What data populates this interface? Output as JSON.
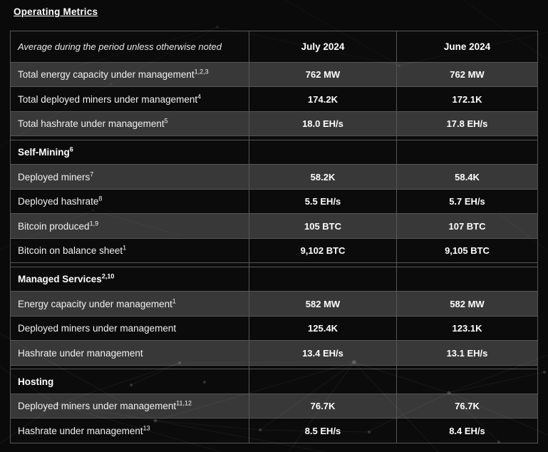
{
  "page": {
    "title": "Operating Metrics"
  },
  "table": {
    "header": {
      "note": "Average during the period unless otherwise noted",
      "columns": [
        "July 2024",
        "June 2024"
      ]
    },
    "rows": [
      {
        "type": "data",
        "label": "Total energy capacity under management",
        "sup": "1,2,3",
        "july": "762 MW",
        "june": "762 MW"
      },
      {
        "type": "data",
        "label": "Total deployed miners under management",
        "sup": "4",
        "july": "174.2K",
        "june": "172.1K"
      },
      {
        "type": "data",
        "label": "Total hashrate under management",
        "sup": "5",
        "july": "18.0 EH/s",
        "june": "17.8 EH/s"
      },
      {
        "type": "spacer",
        "label": "",
        "sup": "",
        "july": "",
        "june": ""
      },
      {
        "type": "section",
        "label": "Self-Mining",
        "sup": "6",
        "july": "",
        "june": ""
      },
      {
        "type": "data",
        "label": "Deployed miners",
        "sup": "7",
        "july": "58.2K",
        "june": "58.4K"
      },
      {
        "type": "data",
        "label": "Deployed hashrate",
        "sup": "8",
        "july": "5.5 EH/s",
        "june": "5.7 EH/s"
      },
      {
        "type": "data",
        "label": "Bitcoin produced",
        "sup": "1,9",
        "july": "105 BTC",
        "june": "107 BTC"
      },
      {
        "type": "data",
        "label": "Bitcoin on balance sheet",
        "sup": "1",
        "july": "9,102 BTC",
        "june": "9,105 BTC"
      },
      {
        "type": "spacer",
        "label": "",
        "sup": "",
        "july": "",
        "june": ""
      },
      {
        "type": "section",
        "label": "Managed Services",
        "sup": "2,10",
        "july": "",
        "june": ""
      },
      {
        "type": "data",
        "label": "Energy capacity under management",
        "sup": "1",
        "july": "582 MW",
        "june": "582 MW"
      },
      {
        "type": "data",
        "label": "Deployed miners under management",
        "sup": "",
        "july": "125.4K",
        "june": "123.1K"
      },
      {
        "type": "data",
        "label": "Hashrate under management",
        "sup": "",
        "july": "13.4 EH/s",
        "june": "13.1 EH/s"
      },
      {
        "type": "spacer",
        "label": "",
        "sup": "",
        "july": "",
        "june": ""
      },
      {
        "type": "section",
        "label": "Hosting",
        "sup": "",
        "july": "",
        "june": ""
      },
      {
        "type": "data",
        "label": "Deployed miners under management",
        "sup": "11,12",
        "july": "76.7K",
        "june": "76.7K"
      },
      {
        "type": "data",
        "label": "Hashrate under management",
        "sup": "13",
        "july": "8.5 EH/s",
        "june": "8.4 EH/s"
      }
    ]
  },
  "colors": {
    "page_background": "#0a0a0a",
    "row_shaded": "#383838",
    "row_dark": "#0b0b0b",
    "border": "#565656",
    "text": "#ffffff"
  }
}
